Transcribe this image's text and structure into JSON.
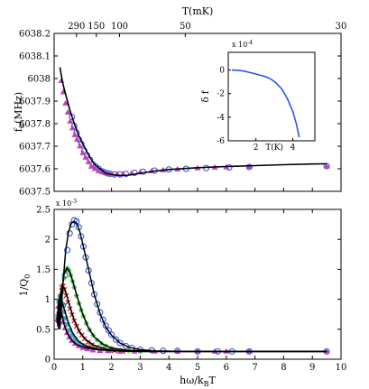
{
  "chart_data": [
    {
      "id": "top",
      "type": "scatter",
      "ylabel": "f",
      "ylabel_sub": "0",
      "ylabel_unit": "(MHz)",
      "top_axis_label": "T(mK)",
      "xlim": [
        0,
        10
      ],
      "ylim": [
        6037.5,
        6038.2
      ],
      "yticks": [
        {
          "v": 6037.5,
          "t": "6037.5"
        },
        {
          "v": 6037.6,
          "t": "6037.6"
        },
        {
          "v": 6037.7,
          "t": "6037.7"
        },
        {
          "v": 6037.8,
          "t": "6037.8"
        },
        {
          "v": 6037.9,
          "t": "6037.9"
        },
        {
          "v": 6038.0,
          "t": "6038"
        },
        {
          "v": 6038.1,
          "t": "6038.1"
        },
        {
          "v": 6038.2,
          "t": "6038.2"
        }
      ],
      "xticks": [
        0,
        1,
        2,
        3,
        4,
        5,
        6,
        7,
        8,
        9,
        10
      ],
      "top_ticks": [
        {
          "x": 0.78,
          "t": "290"
        },
        {
          "x": 1.47,
          "t": "150"
        },
        {
          "x": 2.28,
          "t": "100"
        },
        {
          "x": 4.57,
          "t": "50"
        },
        {
          "x": 10.0,
          "t": "30"
        }
      ],
      "model_curve": {
        "x": [
          0.2,
          0.3,
          0.4,
          0.55,
          0.7,
          0.85,
          1.0,
          1.2,
          1.4,
          1.6,
          1.8,
          2.0,
          2.3,
          2.6,
          3.0,
          3.5,
          4.0,
          5.0,
          6.0,
          7.0,
          8.0,
          9.0,
          9.5
        ],
        "y": [
          6038.05,
          6037.98,
          6037.93,
          6037.86,
          6037.8,
          6037.75,
          6037.71,
          6037.66,
          6037.62,
          6037.6,
          6037.58,
          6037.575,
          6037.57,
          6037.572,
          6037.58,
          6037.59,
          6037.597,
          6037.605,
          6037.61,
          6037.614,
          6037.618,
          6037.621,
          6037.622
        ]
      },
      "series": [
        {
          "marker": "circle",
          "color": "#3355d8",
          "x": [
            0.62,
            0.7,
            0.78,
            0.86,
            0.95,
            1.05,
            1.15,
            1.25,
            1.35,
            1.45,
            1.55,
            1.65,
            1.75,
            1.85,
            1.95,
            2.1,
            2.3,
            2.5,
            2.8,
            3.1,
            3.5,
            4.0,
            4.6,
            5.3,
            6.1,
            6.8,
            9.5
          ],
          "y": [
            6037.83,
            6037.79,
            6037.76,
            6037.73,
            6037.71,
            6037.68,
            6037.66,
            6037.64,
            6037.62,
            6037.61,
            6037.6,
            6037.59,
            6037.585,
            6037.58,
            6037.578,
            6037.575,
            6037.575,
            6037.577,
            6037.582,
            6037.587,
            6037.592,
            6037.597,
            6037.6,
            6037.603,
            6037.606,
            6037.608,
            6037.612
          ]
        },
        {
          "marker": "triangle",
          "color": "#c040c0",
          "x": [
            0.25,
            0.32,
            0.4,
            0.48,
            0.56,
            0.64,
            0.72,
            0.8,
            0.9,
            1.0,
            1.1,
            1.2,
            1.3,
            1.42,
            1.55,
            1.7,
            1.85,
            2.0,
            2.2,
            2.4,
            2.7,
            3.0,
            3.4,
            3.8,
            4.3,
            5.0,
            5.6,
            6.0,
            6.8,
            9.5
          ],
          "y": [
            6037.99,
            6037.94,
            6037.89,
            6037.85,
            6037.81,
            6037.78,
            6037.75,
            6037.73,
            6037.7,
            6037.67,
            6037.65,
            6037.63,
            6037.61,
            6037.6,
            6037.59,
            6037.585,
            6037.58,
            6037.578,
            6037.576,
            6037.577,
            6037.58,
            6037.585,
            6037.59,
            6037.594,
            6037.598,
            6037.603,
            6037.606,
            6037.607,
            6037.609,
            6037.611
          ]
        }
      ]
    },
    {
      "id": "inset",
      "type": "line",
      "ylabel": "δ f",
      "xlabel": "T(K)",
      "multiplier": "x 10",
      "multiplier_exp": "-4",
      "xlim": [
        0.5,
        5.2
      ],
      "ylim": [
        -6,
        1.5
      ],
      "yticks": [
        -6,
        -4,
        -2,
        0
      ],
      "xticks": [
        {
          "v": 2,
          "t": "2"
        },
        {
          "v": 4,
          "t": "4"
        }
      ],
      "color": "#2a56e8",
      "x": [
        0.7,
        1.0,
        1.3,
        1.6,
        1.9,
        2.2,
        2.5,
        2.8,
        3.1,
        3.4,
        3.7,
        4.0,
        4.2,
        4.35
      ],
      "y": [
        0.0,
        -0.02,
        -0.08,
        -0.18,
        -0.3,
        -0.42,
        -0.55,
        -0.75,
        -1.1,
        -1.6,
        -2.4,
        -3.5,
        -4.6,
        -5.7
      ]
    },
    {
      "id": "bottom",
      "type": "scatter",
      "ylabel": "1/Q",
      "ylabel_sub": "0",
      "xlabel_parts": [
        "hω/k",
        "B",
        "T"
      ],
      "multiplier": "x 10",
      "multiplier_exp": "-3",
      "xlim": [
        0,
        10
      ],
      "ylim": [
        0,
        2.5
      ],
      "yticks": [
        {
          "v": 0,
          "t": "0"
        },
        {
          "v": 0.5,
          "t": "0.5"
        },
        {
          "v": 1,
          "t": "1"
        },
        {
          "v": 1.5,
          "t": "1.5"
        },
        {
          "v": 2,
          "t": "2"
        },
        {
          "v": 2.5,
          "t": "2.5"
        }
      ],
      "xticks": [
        0,
        1,
        2,
        3,
        4,
        5,
        6,
        7,
        8,
        9,
        10
      ],
      "curves": [
        {
          "x": [
            0.2,
            0.3,
            0.4,
            0.5,
            0.6,
            0.7,
            0.8,
            0.9,
            1.0,
            1.2,
            1.4,
            1.6,
            1.8,
            2.0,
            2.3,
            2.6,
            3.0,
            3.5,
            4.5,
            6.0,
            9.5
          ],
          "y": [
            0.5,
            1.2,
            1.8,
            2.12,
            2.27,
            2.3,
            2.26,
            2.12,
            1.92,
            1.5,
            1.08,
            0.76,
            0.54,
            0.4,
            0.27,
            0.2,
            0.16,
            0.14,
            0.13,
            0.13,
            0.13
          ]
        },
        {
          "x": [
            0.15,
            0.25,
            0.35,
            0.45,
            0.55,
            0.65,
            0.8,
            1.0,
            1.2,
            1.4,
            1.7,
            2.0,
            2.5,
            3.0,
            4.0,
            9.5
          ],
          "y": [
            0.5,
            1.1,
            1.42,
            1.52,
            1.45,
            1.3,
            1.05,
            0.75,
            0.52,
            0.37,
            0.25,
            0.19,
            0.15,
            0.14,
            0.13,
            0.13
          ]
        },
        {
          "x": [
            0.12,
            0.2,
            0.28,
            0.36,
            0.45,
            0.55,
            0.7,
            0.9,
            1.1,
            1.4,
            1.8,
            2.3,
            3.0,
            9.5
          ],
          "y": [
            0.55,
            1.05,
            1.22,
            1.18,
            1.05,
            0.88,
            0.65,
            0.45,
            0.33,
            0.23,
            0.17,
            0.14,
            0.13,
            0.13
          ]
        },
        {
          "x": [
            0.1,
            0.16,
            0.22,
            0.3,
            0.4,
            0.5,
            0.65,
            0.85,
            1.1,
            1.5,
            2.0,
            3.0,
            9.5
          ],
          "y": [
            0.6,
            0.98,
            1.03,
            0.92,
            0.76,
            0.6,
            0.43,
            0.3,
            0.22,
            0.17,
            0.14,
            0.13,
            0.13
          ]
        },
        {
          "x": [
            0.1,
            0.15,
            0.2,
            0.27,
            0.35,
            0.45,
            0.6,
            0.8,
            1.1,
            1.5,
            2.2,
            3.0,
            9.5
          ],
          "y": [
            0.65,
            0.9,
            0.88,
            0.74,
            0.58,
            0.44,
            0.32,
            0.24,
            0.19,
            0.16,
            0.14,
            0.13,
            0.13
          ]
        }
      ],
      "series": [
        {
          "marker": "circle",
          "color": "#3355d8",
          "x": [
            0.3,
            0.38,
            0.46,
            0.54,
            0.62,
            0.7,
            0.78,
            0.86,
            0.94,
            1.02,
            1.1,
            1.2,
            1.3,
            1.4,
            1.5,
            1.6,
            1.7,
            1.8,
            1.9,
            2.0,
            2.15,
            2.3,
            2.5,
            2.7,
            3.0,
            3.4,
            3.8,
            4.3,
            5.0,
            5.7,
            6.2,
            6.8,
            9.5
          ],
          "y": [
            0.9,
            1.4,
            1.82,
            2.1,
            2.25,
            2.32,
            2.3,
            2.2,
            2.05,
            1.88,
            1.7,
            1.48,
            1.27,
            1.08,
            0.92,
            0.78,
            0.66,
            0.56,
            0.48,
            0.41,
            0.33,
            0.27,
            0.22,
            0.19,
            0.16,
            0.15,
            0.14,
            0.14,
            0.13,
            0.13,
            0.13,
            0.13,
            0.13
          ]
        },
        {
          "marker": "star",
          "color": "#28c428",
          "x": [
            0.22,
            0.28,
            0.34,
            0.4,
            0.46,
            0.52,
            0.58,
            0.64,
            0.7,
            0.78,
            0.86,
            0.94,
            1.02,
            1.12,
            1.24,
            1.36,
            1.5,
            1.65,
            1.8,
            2.0,
            2.3,
            2.6,
            3.0
          ],
          "y": [
            0.8,
            1.12,
            1.35,
            1.48,
            1.52,
            1.48,
            1.4,
            1.3,
            1.2,
            1.06,
            0.93,
            0.82,
            0.72,
            0.6,
            0.49,
            0.4,
            0.32,
            0.26,
            0.22,
            0.18,
            0.15,
            0.14,
            0.13
          ]
        },
        {
          "marker": "cross",
          "color": "#d02020",
          "x": [
            0.16,
            0.21,
            0.26,
            0.31,
            0.36,
            0.42,
            0.48,
            0.55,
            0.62,
            0.7,
            0.78,
            0.87,
            0.96,
            1.06,
            1.18,
            1.32,
            1.48,
            1.66,
            1.86,
            2.1,
            2.4
          ],
          "y": [
            0.75,
            1.05,
            1.2,
            1.22,
            1.16,
            1.06,
            0.95,
            0.84,
            0.74,
            0.64,
            0.55,
            0.47,
            0.4,
            0.34,
            0.28,
            0.24,
            0.2,
            0.17,
            0.15,
            0.14,
            0.13
          ]
        },
        {
          "marker": "square",
          "color": "#30b8b8",
          "x": [
            0.12,
            0.16,
            0.2,
            0.24,
            0.29,
            0.34,
            0.4,
            0.47,
            0.55,
            0.64,
            0.74,
            0.86,
            1.0,
            1.16,
            1.35,
            1.6,
            1.9,
            2.3
          ],
          "y": [
            0.72,
            0.96,
            1.03,
            0.98,
            0.89,
            0.79,
            0.68,
            0.58,
            0.48,
            0.4,
            0.33,
            0.27,
            0.23,
            0.2,
            0.17,
            0.15,
            0.14,
            0.13
          ]
        },
        {
          "marker": "triangle",
          "color": "#c040c0",
          "x": [
            0.1,
            0.14,
            0.18,
            0.22,
            0.27,
            0.32,
            0.38,
            0.45,
            0.53,
            0.62,
            0.73,
            0.86,
            1.0,
            1.16,
            1.35,
            1.6,
            1.9,
            2.3,
            2.8,
            3.5,
            4.3,
            5.0,
            5.6,
            6.0,
            6.8,
            9.5
          ],
          "y": [
            0.66,
            0.88,
            0.9,
            0.83,
            0.72,
            0.62,
            0.52,
            0.44,
            0.37,
            0.31,
            0.26,
            0.22,
            0.19,
            0.17,
            0.15,
            0.14,
            0.14,
            0.13,
            0.13,
            0.13,
            0.13,
            0.13,
            0.13,
            0.13,
            0.13,
            0.13
          ]
        }
      ]
    }
  ]
}
